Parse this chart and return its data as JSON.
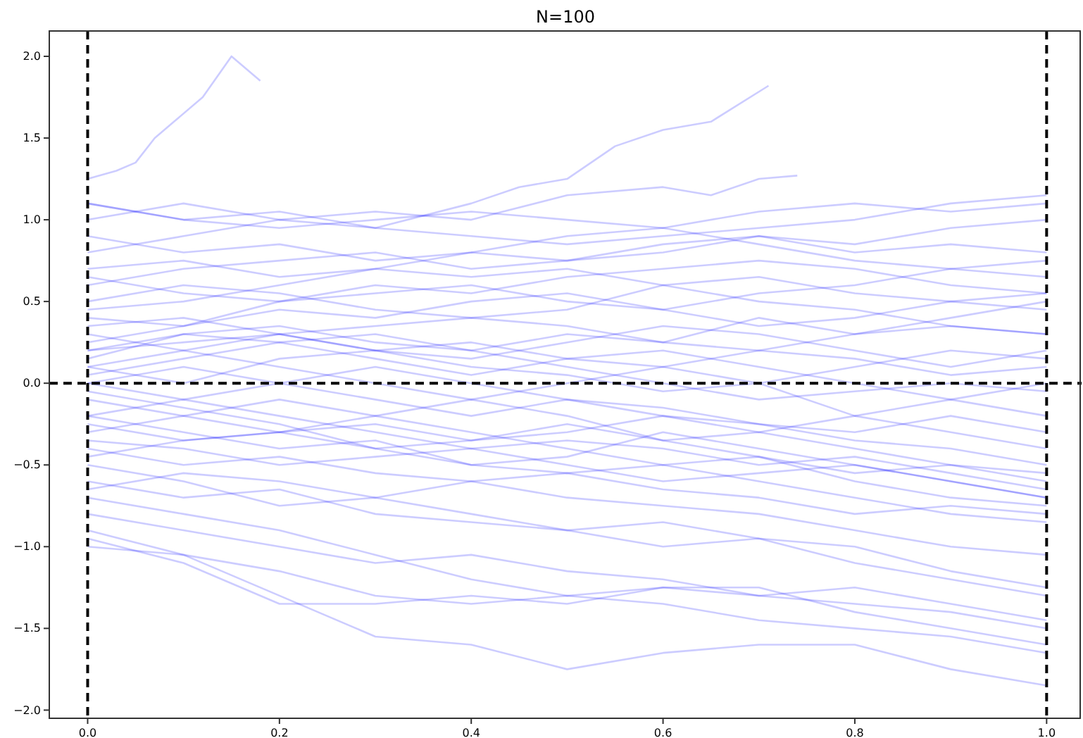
{
  "chart_data": {
    "type": "line",
    "title": "N=100",
    "x": [
      0,
      0.1,
      0.2,
      0.3,
      0.4,
      0.5,
      0.6,
      0.7,
      0.8,
      0.9,
      1.0
    ],
    "xlim": [
      -0.04,
      1.035
    ],
    "ylim": [
      -2.05,
      2.155
    ],
    "xticks": [
      {
        "value": 0,
        "label": "0.0"
      },
      0.2,
      0.4,
      0.6,
      0.8,
      {
        "value": 1,
        "label": "1.0"
      }
    ],
    "yticks": [
      {
        "value": -2,
        "label": "−2.0"
      },
      {
        "value": -1.5,
        "label": "−1.5"
      },
      {
        "value": -1,
        "label": "−1.0"
      },
      {
        "value": -0.5,
        "label": "−0.5"
      },
      {
        "value": 0,
        "label": "0.0"
      },
      0.5,
      {
        "value": 1,
        "label": "1.0"
      },
      1.5,
      {
        "value": 2,
        "label": "2.0"
      }
    ],
    "grid": false,
    "line_style": "solid",
    "ref_lines": [
      {
        "axis": "x",
        "value": 0,
        "color": "#000000",
        "line_style": "dashed"
      },
      {
        "axis": "x",
        "value": 1,
        "color": "#000000",
        "line_style": "dashed"
      },
      {
        "axis": "y",
        "value": 0,
        "color": "#000000",
        "line_style": "dashed"
      }
    ],
    "series": [
      {
        "color": "#0000ff",
        "x": [
          0,
          0.03,
          0.05,
          0.07,
          0.09,
          0.12,
          0.15,
          0.18
        ],
        "values": [
          1.25,
          1.3,
          1.35,
          1.5,
          1.6,
          1.75,
          2.0,
          1.85
        ]
      },
      {
        "color": "#0000ff",
        "x": [
          0,
          0.1,
          0.2,
          0.3,
          0.4,
          0.45,
          0.5,
          0.55,
          0.6,
          0.65,
          0.71
        ],
        "values": [
          1.1,
          1.0,
          1.05,
          0.95,
          1.1,
          1.2,
          1.25,
          1.45,
          1.55,
          1.6,
          1.82
        ]
      },
      {
        "color": "#0000ff",
        "x": [
          0,
          0.1,
          0.2,
          0.3,
          0.4,
          0.5,
          0.6,
          0.65,
          0.7,
          0.74
        ],
        "values": [
          1.0,
          1.1,
          1.0,
          1.05,
          1.0,
          1.15,
          1.2,
          1.15,
          1.25,
          1.27
        ]
      },
      {
        "color": "#0000ff",
        "values": [
          -0.9,
          -1.05,
          -1.3,
          -1.55,
          -1.6,
          -1.75,
          -1.65,
          -1.6,
          -1.6,
          -1.75,
          -1.85
        ]
      },
      {
        "color": "#0000ff",
        "values": [
          -0.95,
          -1.1,
          -1.35,
          -1.35,
          -1.3,
          -1.35,
          -1.25,
          -1.25,
          -1.4,
          -1.5,
          -1.6
        ]
      },
      {
        "color": "#0000ff",
        "values": [
          0.2,
          0.3,
          0.35,
          0.25,
          0.2,
          0.3,
          0.25,
          0.4,
          0.3,
          0.35,
          0.3
        ]
      },
      {
        "color": "#0000ff",
        "values": [
          -0.2,
          -0.3,
          -0.4,
          -0.35,
          -0.5,
          -0.45,
          -0.3,
          -0.4,
          -0.5,
          -0.6,
          -0.7
        ]
      },
      {
        "color": "#0000ff",
        "values": [
          0.6,
          0.7,
          0.75,
          0.8,
          0.7,
          0.75,
          0.8,
          0.9,
          0.85,
          0.95,
          1.0
        ]
      },
      {
        "color": "#0000ff",
        "values": [
          -0.5,
          -0.6,
          -0.75,
          -0.7,
          -0.8,
          -0.9,
          -1.0,
          -0.95,
          -1.1,
          -1.2,
          -1.3
        ]
      },
      {
        "color": "#0000ff",
        "values": [
          0.0,
          0.1,
          0.0,
          -0.1,
          -0.2,
          -0.1,
          -0.2,
          -0.3,
          -0.2,
          -0.1,
          0.0
        ]
      },
      {
        "color": "#0000ff",
        "values": [
          0.4,
          0.35,
          0.5,
          0.55,
          0.6,
          0.5,
          0.45,
          0.55,
          0.6,
          0.7,
          0.65
        ]
      },
      {
        "color": "#0000ff",
        "values": [
          -0.3,
          -0.2,
          -0.1,
          -0.2,
          -0.3,
          -0.4,
          -0.5,
          -0.45,
          -0.55,
          -0.5,
          -0.6
        ]
      },
      {
        "color": "#0000ff",
        "values": [
          0.1,
          0.0,
          0.15,
          0.2,
          0.1,
          0.05,
          -0.05,
          0.0,
          0.1,
          0.2,
          0.15
        ]
      },
      {
        "color": "#0000ff",
        "values": [
          0.8,
          0.9,
          1.0,
          0.95,
          0.9,
          0.85,
          0.9,
          0.95,
          1.0,
          1.1,
          1.15
        ]
      },
      {
        "color": "#0000ff",
        "values": [
          -0.7,
          -0.8,
          -0.9,
          -1.05,
          -1.2,
          -1.3,
          -1.25,
          -1.3,
          -1.35,
          -1.4,
          -1.5
        ]
      },
      {
        "color": "#0000ff",
        "values": [
          0.3,
          0.2,
          0.1,
          0.0,
          -0.1,
          0.0,
          0.1,
          0.0,
          -0.2,
          -0.3,
          -0.4
        ]
      },
      {
        "color": "#0000ff",
        "values": [
          -0.1,
          -0.2,
          -0.3,
          -0.2,
          -0.1,
          -0.2,
          -0.35,
          -0.45,
          -0.6,
          -0.7,
          -0.75
        ]
      },
      {
        "color": "#0000ff",
        "values": [
          0.5,
          0.6,
          0.55,
          0.45,
          0.4,
          0.45,
          0.6,
          0.65,
          0.55,
          0.5,
          0.45
        ]
      },
      {
        "color": "#0000ff",
        "values": [
          -0.4,
          -0.5,
          -0.45,
          -0.55,
          -0.6,
          -0.7,
          -0.75,
          -0.8,
          -0.9,
          -1.0,
          -1.05
        ]
      },
      {
        "color": "#0000ff",
        "values": [
          0.7,
          0.75,
          0.65,
          0.7,
          0.8,
          0.75,
          0.85,
          0.9,
          0.8,
          0.85,
          0.8
        ]
      },
      {
        "color": "#0000ff",
        "values": [
          0.0,
          -0.1,
          -0.2,
          -0.3,
          -0.4,
          -0.35,
          -0.4,
          -0.5,
          -0.45,
          -0.55,
          -0.65
        ]
      },
      {
        "color": "#0000ff",
        "values": [
          0.2,
          0.25,
          0.3,
          0.35,
          0.4,
          0.35,
          0.25,
          0.2,
          0.3,
          0.4,
          0.5
        ]
      },
      {
        "color": "#0000ff",
        "values": [
          -0.6,
          -0.7,
          -0.65,
          -0.8,
          -0.85,
          -0.9,
          -0.85,
          -0.95,
          -1.0,
          -1.15,
          -1.25
        ]
      },
      {
        "color": "#0000ff",
        "values": [
          0.35,
          0.4,
          0.3,
          0.2,
          0.25,
          0.15,
          0.1,
          0.2,
          0.15,
          0.05,
          0.1
        ]
      },
      {
        "color": "#0000ff",
        "values": [
          -0.2,
          -0.1,
          0.0,
          0.1,
          0.0,
          -0.1,
          -0.15,
          -0.25,
          -0.3,
          -0.2,
          -0.3
        ]
      },
      {
        "color": "#0000ff",
        "values": [
          1.1,
          1.0,
          0.95,
          1.0,
          1.05,
          1.0,
          0.95,
          1.05,
          1.1,
          1.05,
          1.1
        ]
      },
      {
        "color": "#0000ff",
        "values": [
          -0.8,
          -0.9,
          -1.0,
          -1.1,
          -1.05,
          -1.15,
          -1.2,
          -1.3,
          -1.25,
          -1.35,
          -1.45
        ]
      },
      {
        "color": "#0000ff",
        "values": [
          0.15,
          0.3,
          0.25,
          0.3,
          0.2,
          0.1,
          0.0,
          -0.1,
          -0.05,
          0.0,
          -0.05
        ]
      },
      {
        "color": "#0000ff",
        "values": [
          -0.35,
          -0.4,
          -0.5,
          -0.45,
          -0.4,
          -0.5,
          -0.6,
          -0.55,
          -0.5,
          -0.6,
          -0.7
        ]
      },
      {
        "color": "#0000ff",
        "values": [
          0.45,
          0.5,
          0.6,
          0.7,
          0.65,
          0.7,
          0.6,
          0.5,
          0.45,
          0.35,
          0.3
        ]
      },
      {
        "color": "#0000ff",
        "values": [
          -0.05,
          -0.15,
          -0.25,
          -0.4,
          -0.5,
          -0.55,
          -0.5,
          -0.6,
          -0.7,
          -0.8,
          -0.85
        ]
      },
      {
        "color": "#0000ff",
        "values": [
          0.9,
          0.8,
          0.85,
          0.75,
          0.8,
          0.9,
          0.95,
          0.85,
          0.75,
          0.7,
          0.75
        ]
      },
      {
        "color": "#0000ff",
        "values": [
          -0.45,
          -0.35,
          -0.3,
          -0.4,
          -0.35,
          -0.3,
          -0.2,
          -0.25,
          -0.35,
          -0.4,
          -0.5
        ]
      },
      {
        "color": "#0000ff",
        "values": [
          0.25,
          0.35,
          0.45,
          0.4,
          0.5,
          0.55,
          0.45,
          0.35,
          0.4,
          0.5,
          0.55
        ]
      },
      {
        "color": "#0000ff",
        "values": [
          -0.65,
          -0.55,
          -0.6,
          -0.7,
          -0.6,
          -0.55,
          -0.65,
          -0.7,
          -0.8,
          -0.75,
          -0.8
        ]
      },
      {
        "color": "#0000ff",
        "values": [
          0.05,
          0.15,
          0.25,
          0.15,
          0.05,
          0.15,
          0.2,
          0.1,
          0.0,
          -0.1,
          -0.2
        ]
      },
      {
        "color": "#0000ff",
        "values": [
          -0.25,
          -0.35,
          -0.3,
          -0.25,
          -0.35,
          -0.25,
          -0.35,
          -0.3,
          -0.4,
          -0.5,
          -0.55
        ]
      },
      {
        "color": "#0000ff",
        "values": [
          0.65,
          0.55,
          0.5,
          0.6,
          0.55,
          0.65,
          0.7,
          0.75,
          0.7,
          0.6,
          0.55
        ]
      },
      {
        "color": "#0000ff",
        "values": [
          -1.0,
          -1.05,
          -1.15,
          -1.3,
          -1.35,
          -1.3,
          -1.35,
          -1.45,
          -1.5,
          -1.55,
          -1.65
        ]
      },
      {
        "color": "#0000ff",
        "values": [
          0.1,
          0.2,
          0.3,
          0.2,
          0.15,
          0.25,
          0.35,
          0.3,
          0.2,
          0.1,
          0.2
        ]
      }
    ]
  }
}
